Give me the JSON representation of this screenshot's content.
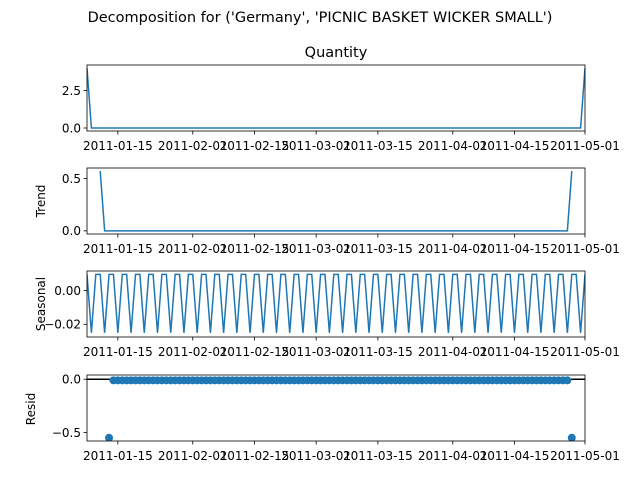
{
  "figure": {
    "suptitle": "Decomposition for ('Germany', 'PICNIC BASKET WICKER SMALL')"
  },
  "colors": {
    "series": "#1f77b4",
    "axis": "#000000",
    "zero_line": "#000000"
  },
  "chart_data": [
    {
      "type": "line",
      "title": "Quantity",
      "ylabel": "",
      "x_range": [
        "2011-01-08",
        "2011-05-01"
      ],
      "ylim": [
        -0.2,
        4.2
      ],
      "y_ticks": [
        0.0,
        2.5
      ],
      "y_tick_labels": [
        "0.0",
        "2.5"
      ],
      "x_ticks": [
        "2011-01-15",
        "2011-02-01",
        "2011-02-15",
        "2011-03-01",
        "2011-03-15",
        "2011-04-01",
        "2011-04-15",
        "2011-05-01"
      ],
      "x_tick_labels": [
        "2011-01-15",
        "2011-02-01",
        "2011-02-15",
        "2011-03-01",
        "2011-03-15",
        "2011-04-01",
        "2011-04-15",
        "2011-05-01"
      ],
      "series": [
        {
          "x": [
            "2011-01-08",
            "2011-01-09",
            "2011-04-30",
            "2011-05-01"
          ],
          "y": [
            4,
            0,
            0,
            4
          ]
        }
      ]
    },
    {
      "type": "line",
      "title": "",
      "ylabel": "Trend",
      "x_range": [
        "2011-01-08",
        "2011-05-01"
      ],
      "ylim": [
        -0.03,
        0.6
      ],
      "y_ticks": [
        0.0,
        0.5
      ],
      "y_tick_labels": [
        "0.0",
        "0.5"
      ],
      "x_ticks": [
        "2011-01-15",
        "2011-02-01",
        "2011-02-15",
        "2011-03-01",
        "2011-03-15",
        "2011-04-01",
        "2011-04-15",
        "2011-05-01"
      ],
      "x_tick_labels": [
        "2011-01-15",
        "2011-02-01",
        "2011-02-15",
        "2011-03-01",
        "2011-03-15",
        "2011-04-01",
        "2011-04-15",
        "2011-05-01"
      ],
      "series": [
        {
          "x": [
            "2011-01-11",
            "2011-01-12",
            "2011-04-27",
            "2011-04-28"
          ],
          "y": [
            0.571,
            0,
            0,
            0.571
          ]
        }
      ]
    },
    {
      "type": "line",
      "title": "",
      "ylabel": "Seasonal",
      "x_range": [
        "2011-01-08",
        "2011-05-01"
      ],
      "ylim": [
        -0.0275,
        0.0115
      ],
      "y_ticks": [
        0.0,
        -0.02
      ],
      "y_tick_labels": [
        "0.00",
        "−0.02"
      ],
      "x_ticks": [
        "2011-01-15",
        "2011-02-01",
        "2011-02-15",
        "2011-03-01",
        "2011-03-15",
        "2011-04-01",
        "2011-04-15",
        "2011-05-01"
      ],
      "x_tick_labels": [
        "2011-01-15",
        "2011-02-01",
        "2011-02-15",
        "2011-03-01",
        "2011-03-15",
        "2011-04-01",
        "2011-04-15",
        "2011-05-01"
      ],
      "period_days": 3,
      "pattern": [
        0.0095,
        -0.025,
        0.0095
      ],
      "start": "2011-01-08",
      "end": "2011-05-01"
    },
    {
      "type": "scatter",
      "title": "",
      "ylabel": "Resid",
      "x_range": [
        "2011-01-08",
        "2011-05-01"
      ],
      "ylim": [
        -0.58,
        0.04
      ],
      "y_ticks": [
        0.0,
        -0.5
      ],
      "y_tick_labels": [
        "0.0",
        "−0.5"
      ],
      "x_ticks": [
        "2011-01-15",
        "2011-02-01",
        "2011-02-15",
        "2011-03-01",
        "2011-03-15",
        "2011-04-01",
        "2011-04-15",
        "2011-05-01"
      ],
      "x_tick_labels": [
        "2011-01-15",
        "2011-02-01",
        "2011-02-15",
        "2011-03-01",
        "2011-03-15",
        "2011-04-01",
        "2011-04-15",
        "2011-05-01"
      ],
      "zero_line": 0,
      "outliers": [
        {
          "x": "2011-01-13",
          "y": -0.55
        },
        {
          "x": "2011-04-28",
          "y": -0.55
        }
      ],
      "regular": {
        "start": "2011-01-14",
        "end": "2011-04-27",
        "y": -0.01
      }
    }
  ]
}
